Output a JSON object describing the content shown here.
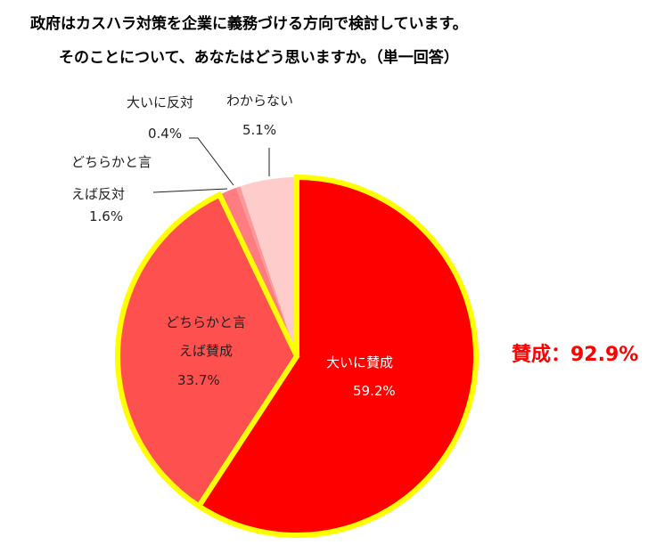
{
  "chart_data": {
    "type": "pie",
    "title": [
      "政府はカスハラ対策を企業に義務づける方向で検討しています。",
      "そのことについて、あなたはどう思いますか。（単一回答）"
    ],
    "slices": [
      {
        "label": "大いに賛成",
        "value": 59.2,
        "value_label": "59.2%",
        "color": "#FF0000"
      },
      {
        "label": "どちらかと言えば賛成",
        "value": 33.7,
        "value_label": "33.7%",
        "color": "#FF5050"
      },
      {
        "label": "どちらかと言えば反対",
        "value": 1.6,
        "value_label": "1.6%",
        "color": "#FF7C80"
      },
      {
        "label": "大いに反対",
        "value": 0.4,
        "value_label": "0.4%",
        "color": "#FF9999"
      },
      {
        "label": "わからない",
        "value": 5.1,
        "value_label": "5.1%",
        "color": "#FFCCCC"
      }
    ],
    "highlight_color": "#FFFF00",
    "annotation": {
      "text": "賛成：92.9%",
      "color": "#FF0000"
    }
  }
}
